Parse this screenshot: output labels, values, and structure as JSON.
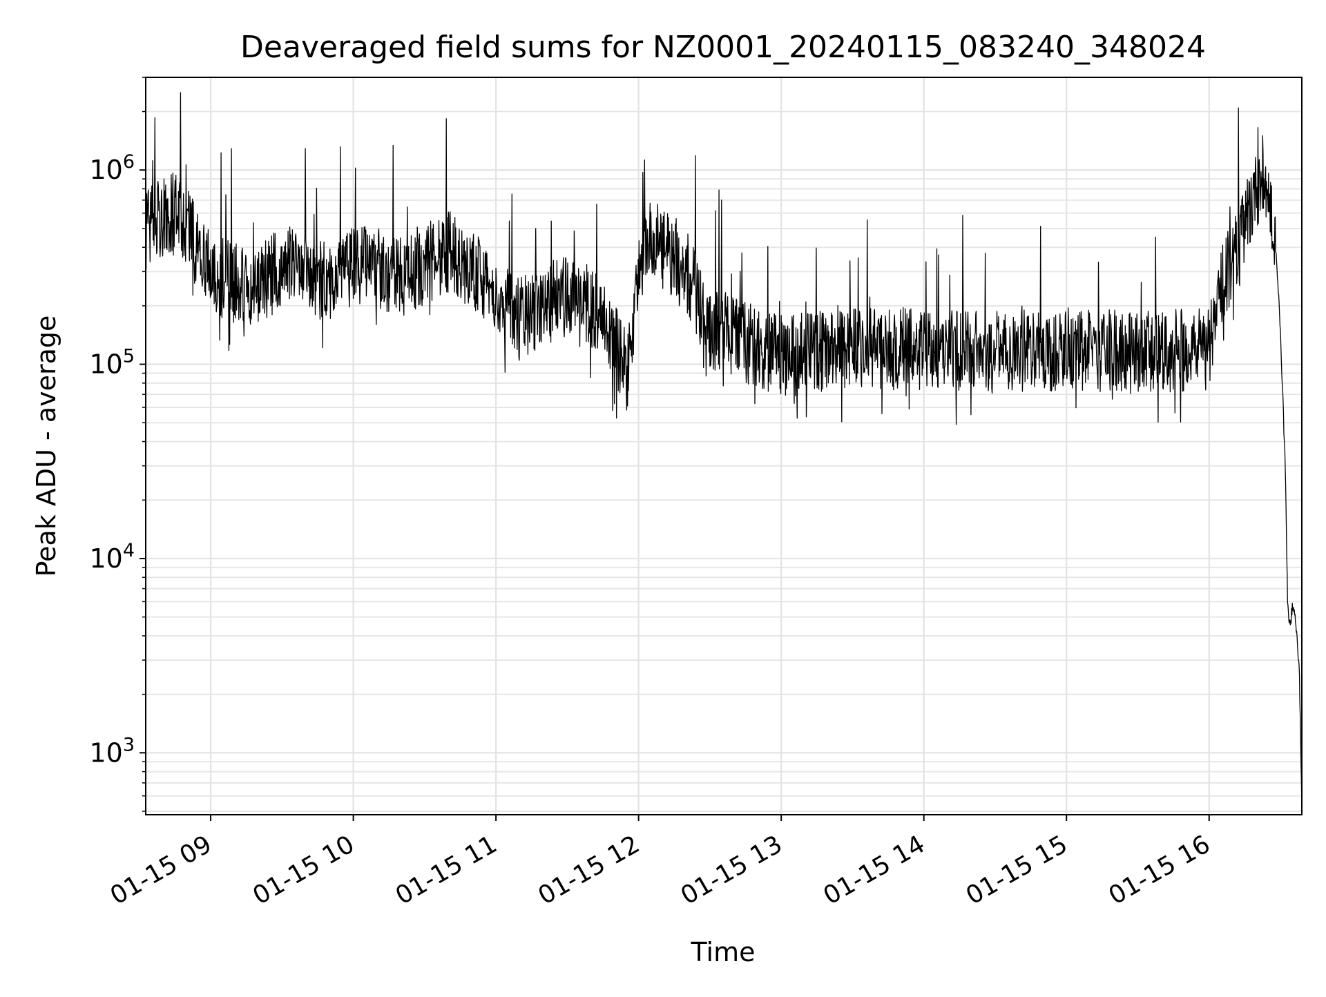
{
  "chart_data": {
    "type": "line",
    "title": "Deaveraged field sums for NZ0001_20240115_083240_348024",
    "xlabel": "Time",
    "ylabel": "Peak ADU - average",
    "yscale": "log",
    "ylim": [
      480,
      3000000
    ],
    "xlim": [
      "2024-01-15 08:32:40",
      "2024-01-15 16:39:00"
    ],
    "grid": true,
    "x_ticks": [
      "2024-01-15 09:00",
      "2024-01-15 10:00",
      "2024-01-15 11:00",
      "2024-01-15 12:00",
      "2024-01-15 13:00",
      "2024-01-15 14:00",
      "2024-01-15 15:00",
      "2024-01-15 16:00"
    ],
    "x_tick_labels": [
      "01-15 09",
      "01-15 10",
      "01-15 11",
      "01-15 12",
      "01-15 13",
      "01-15 14",
      "01-15 15",
      "01-15 16"
    ],
    "y_ticks": [
      1000,
      10000,
      100000,
      1000000
    ],
    "y_tick_labels": [
      {
        "base": "10",
        "exp": "3"
      },
      {
        "base": "10",
        "exp": "4"
      },
      {
        "base": "10",
        "exp": "5"
      },
      {
        "base": "10",
        "exp": "6"
      }
    ],
    "series": [
      {
        "color": "#000000",
        "points": [
          [
            "2024-01-15 08:32:40",
            500000
          ],
          [
            "2024-01-15 08:40",
            560000
          ],
          [
            "2024-01-15 08:45",
            600000
          ],
          [
            "2024-01-15 08:50",
            500000
          ],
          [
            "2024-01-15 08:55",
            380000
          ],
          [
            "2024-01-15 09:00",
            300000
          ],
          [
            "2024-01-15 09:10",
            260000
          ],
          [
            "2024-01-15 09:20",
            240000
          ],
          [
            "2024-01-15 09:30",
            330000
          ],
          [
            "2024-01-15 09:40",
            300000
          ],
          [
            "2024-01-15 09:50",
            260000
          ],
          [
            "2024-01-15 10:00",
            310000
          ],
          [
            "2024-01-15 10:10",
            320000
          ],
          [
            "2024-01-15 10:20",
            280000
          ],
          [
            "2024-01-15 10:30",
            330000
          ],
          [
            "2024-01-15 10:40",
            380000
          ],
          [
            "2024-01-15 10:50",
            310000
          ],
          [
            "2024-01-15 11:00",
            210000
          ],
          [
            "2024-01-15 11:10",
            170000
          ],
          [
            "2024-01-15 11:20",
            200000
          ],
          [
            "2024-01-15 11:30",
            230000
          ],
          [
            "2024-01-15 11:40",
            200000
          ],
          [
            "2024-01-15 11:50",
            130000
          ],
          [
            "2024-01-15 11:55",
            90000
          ],
          [
            "2024-01-15 12:00",
            280000
          ],
          [
            "2024-01-15 12:05",
            420000
          ],
          [
            "2024-01-15 12:10",
            400000
          ],
          [
            "2024-01-15 12:20",
            300000
          ],
          [
            "2024-01-15 12:25",
            220000
          ],
          [
            "2024-01-15 12:30",
            150000
          ],
          [
            "2024-01-15 12:40",
            140000
          ],
          [
            "2024-01-15 12:50",
            120000
          ],
          [
            "2024-01-15 13:00",
            110000
          ],
          [
            "2024-01-15 13:30",
            120000
          ],
          [
            "2024-01-15 14:00",
            120000
          ],
          [
            "2024-01-15 14:30",
            115000
          ],
          [
            "2024-01-15 15:00",
            120000
          ],
          [
            "2024-01-15 15:30",
            115000
          ],
          [
            "2024-01-15 16:00",
            120000
          ],
          [
            "2024-01-15 16:05",
            260000
          ],
          [
            "2024-01-15 16:10",
            330000
          ],
          [
            "2024-01-15 16:15",
            500000
          ],
          [
            "2024-01-15 16:20",
            800000
          ],
          [
            "2024-01-15 16:22",
            1000000
          ],
          [
            "2024-01-15 16:25",
            850000
          ],
          [
            "2024-01-15 16:28",
            400000
          ],
          [
            "2024-01-15 16:30",
            150000
          ],
          [
            "2024-01-15 16:32",
            30000
          ],
          [
            "2024-01-15 16:33",
            6000
          ],
          [
            "2024-01-15 16:34",
            4500
          ],
          [
            "2024-01-15 16:35",
            5500
          ],
          [
            "2024-01-15 16:36",
            5000
          ],
          [
            "2024-01-15 16:37",
            4000
          ],
          [
            "2024-01-15 16:38",
            2500
          ],
          [
            "2024-01-15 16:39",
            500
          ]
        ]
      }
    ]
  }
}
